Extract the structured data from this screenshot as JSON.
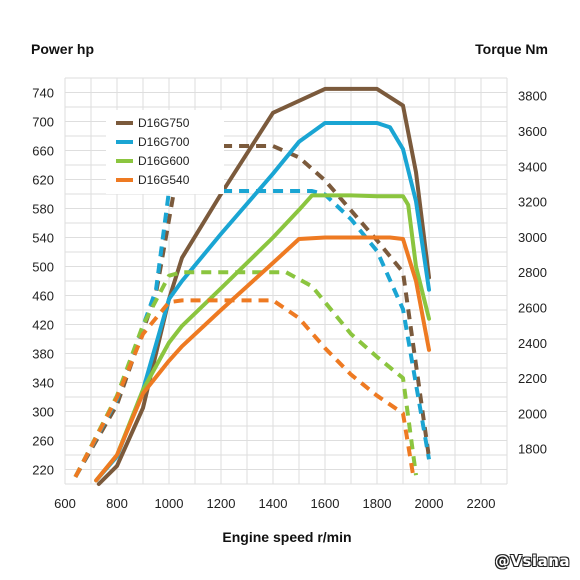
{
  "chart_data": {
    "type": "line",
    "left_axis_title": "Power hp",
    "right_axis_title": "Torque Nm",
    "xlabel": "Engine speed r/min",
    "xlim": [
      600,
      2300
    ],
    "x_ticks": [
      600,
      800,
      1000,
      1200,
      1400,
      1600,
      1800,
      2000,
      2200
    ],
    "y_left_lim": [
      200,
      760
    ],
    "y_left_ticks": [
      220,
      260,
      300,
      340,
      380,
      420,
      460,
      500,
      540,
      580,
      620,
      660,
      700,
      740
    ],
    "y_right_lim": [
      1600,
      3900
    ],
    "y_right_ticks": [
      1800,
      2000,
      2200,
      2400,
      2600,
      2800,
      3000,
      3200,
      3400,
      3600,
      3800
    ],
    "grid": true,
    "legend_position": "top-left",
    "series": [
      {
        "name": "D16G750",
        "color": "#7b5a3c",
        "power": [
          [
            730,
            200
          ],
          [
            800,
            225
          ],
          [
            900,
            305
          ],
          [
            1000,
            455
          ],
          [
            1050,
            512
          ],
          [
            1200,
            600
          ],
          [
            1400,
            712
          ],
          [
            1600,
            745
          ],
          [
            1700,
            745
          ],
          [
            1800,
            745
          ],
          [
            1900,
            722
          ],
          [
            1950,
            630
          ],
          [
            2000,
            485
          ]
        ],
        "torque": [
          [
            640,
            1640
          ],
          [
            800,
            2050
          ],
          [
            950,
            2680
          ],
          [
            1050,
            3515
          ],
          [
            1400,
            3515
          ],
          [
            1500,
            3450
          ],
          [
            1600,
            3320
          ],
          [
            1700,
            3150
          ],
          [
            1800,
            2980
          ],
          [
            1900,
            2800
          ],
          [
            2000,
            1750
          ]
        ]
      },
      {
        "name": "D16G700",
        "color": "#1aa5d3",
        "power": [
          [
            720,
            205
          ],
          [
            800,
            238
          ],
          [
            900,
            330
          ],
          [
            1000,
            455
          ],
          [
            1050,
            480
          ],
          [
            1200,
            545
          ],
          [
            1400,
            628
          ],
          [
            1500,
            672
          ],
          [
            1600,
            698
          ],
          [
            1700,
            698
          ],
          [
            1800,
            698
          ],
          [
            1850,
            692
          ],
          [
            1900,
            662
          ],
          [
            1950,
            590
          ],
          [
            2000,
            468
          ]
        ],
        "torque": [
          [
            640,
            1640
          ],
          [
            800,
            2080
          ],
          [
            950,
            2700
          ],
          [
            1000,
            3260
          ],
          [
            1050,
            3260
          ],
          [
            1300,
            3260
          ],
          [
            1550,
            3260
          ],
          [
            1600,
            3240
          ],
          [
            1700,
            3100
          ],
          [
            1800,
            2920
          ],
          [
            1900,
            2590
          ],
          [
            2000,
            1740
          ]
        ]
      },
      {
        "name": "D16G600",
        "color": "#8bc53f",
        "power": [
          [
            720,
            205
          ],
          [
            800,
            240
          ],
          [
            900,
            330
          ],
          [
            1000,
            395
          ],
          [
            1050,
            418
          ],
          [
            1200,
            470
          ],
          [
            1400,
            540
          ],
          [
            1500,
            578
          ],
          [
            1550,
            598
          ],
          [
            1700,
            598
          ],
          [
            1800,
            597
          ],
          [
            1850,
            597
          ],
          [
            1900,
            597
          ],
          [
            1920,
            585
          ],
          [
            1950,
            500
          ],
          [
            2000,
            428
          ]
        ],
        "torque": [
          [
            640,
            1640
          ],
          [
            800,
            2100
          ],
          [
            900,
            2500
          ],
          [
            1000,
            2780
          ],
          [
            1050,
            2800
          ],
          [
            1250,
            2800
          ],
          [
            1450,
            2800
          ],
          [
            1550,
            2720
          ],
          [
            1700,
            2450
          ],
          [
            1800,
            2320
          ],
          [
            1900,
            2200
          ],
          [
            1950,
            1650
          ]
        ]
      },
      {
        "name": "D16G540",
        "color": "#ee7a22",
        "power": [
          [
            720,
            205
          ],
          [
            800,
            240
          ],
          [
            900,
            325
          ],
          [
            1000,
            370
          ],
          [
            1050,
            390
          ],
          [
            1200,
            440
          ],
          [
            1400,
            505
          ],
          [
            1500,
            538
          ],
          [
            1600,
            540
          ],
          [
            1700,
            540
          ],
          [
            1800,
            540
          ],
          [
            1850,
            540
          ],
          [
            1900,
            538
          ],
          [
            1950,
            480
          ],
          [
            2000,
            385
          ]
        ],
        "torque": [
          [
            640,
            1640
          ],
          [
            800,
            2090
          ],
          [
            900,
            2450
          ],
          [
            1000,
            2630
          ],
          [
            1050,
            2640
          ],
          [
            1250,
            2640
          ],
          [
            1400,
            2640
          ],
          [
            1500,
            2540
          ],
          [
            1600,
            2370
          ],
          [
            1700,
            2220
          ],
          [
            1800,
            2100
          ],
          [
            1900,
            2000
          ],
          [
            1940,
            1640
          ]
        ]
      }
    ]
  },
  "watermark": "@Vsiana"
}
